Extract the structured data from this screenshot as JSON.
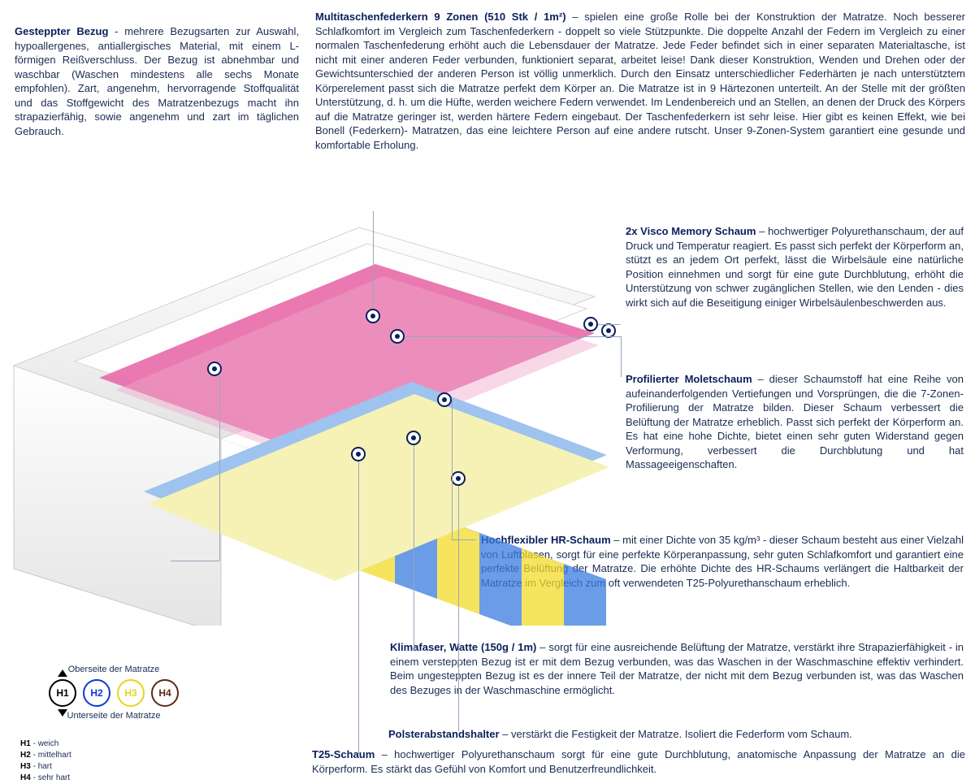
{
  "bezug": {
    "title": "Gesteppter Bezug",
    "sep": " - ",
    "body": "mehrere Bezugsarten zur Auswahl, hypoallergenes, antiallergisches Material, mit einem L-förmigen Reißverschluss. Der Bezug ist abnehmbar und waschbar (Waschen mindestens alle sechs Monate empfohlen). Zart, angenehm, hervorragende Stoffqualität und das Stoffgewicht des Matratzenbezugs macht ihn strapazierfähig, sowie angenehm und zart im täglichen Gebrauch."
  },
  "federkern": {
    "title": "Multitaschenfederkern 9 Zonen (510 Stk / 1m²)",
    "sep": " – ",
    "body": "spielen eine große Rolle bei der Konstruktion der Matratze. Noch besserer Schlafkomfort im Vergleich zum Taschenfederkern - doppelt so viele Stützpunkte. Die doppelte Anzahl der Federn im Vergleich zu einer normalen Taschenfederung erhöht auch die Lebensdauer der Matratze. Jede Feder befindet sich in einer separaten Materialtasche, ist nicht mit einer anderen Feder verbunden, funktioniert separat, arbeitet leise! Dank dieser Konstruktion, Wenden und Drehen oder der Gewichtsunterschied der anderen Person ist völlig unmerklich. Durch den Einsatz unterschiedlicher Federhärten je nach unterstütztem Körperelement passt sich die Matratze perfekt dem Körper an. Die Matratze ist in 9 Härtezonen unterteilt. An der Stelle mit der größten Unterstützung, d. h. um die Hüfte, werden weichere Federn verwendet. Im Lendenbereich und an Stellen, an denen der Druck des Körpers auf die Matratze geringer ist, werden härtere Federn eingebaut. Der Taschenfederkern ist sehr leise. Hier gibt es keinen Effekt, wie bei Bonell (Federkern)- Matratzen, das eine leichtere Person auf eine andere rutscht. Unser 9-Zonen-System garantiert eine gesunde und komfortable Erholung."
  },
  "visco": {
    "title": "2x Visco Memory Schaum",
    "sep": " – ",
    "body": "hochwertiger Polyurethanschaum, der auf Druck und Temperatur reagiert. Es passt sich perfekt der Körperform an, stützt es an jedem Ort perfekt, lässt die Wirbelsäule eine natürliche Position einnehmen und sorgt für eine gute Durchblutung, erhöht die Unterstützung von schwer zugänglichen Stellen, wie den Lenden - dies wirkt sich auf die Beseitigung einiger Wirbelsäulenbeschwerden aus."
  },
  "molet": {
    "title": "Profilierter Moletschaum",
    "sep": " – ",
    "body": "dieser Schaumstoff hat eine Reihe von aufeinanderfolgenden Vertiefungen und Vorsprüngen, die die 7-Zonen-Profilierung der Matratze bilden. Dieser Schaum verbessert die Belüftung der Matratze erheblich. Passt sich perfekt der Körperform an. Es hat eine hohe Dichte, bietet einen sehr guten Widerstand gegen Verformung, verbessert die Durchblutung und hat Massageeigenschaften."
  },
  "hr": {
    "title": "Hochflexibler HR-Schaum",
    "sep": " – ",
    "body": "mit einer Dichte von 35 kg/m³ - dieser Schaum besteht aus einer Vielzahl von Luftblasen, sorgt für eine perfekte Körperanpassung, sehr guten Schlafkomfort und garantiert eine perfekte Belüftung der Matratze. Die erhöhte Dichte des HR-Schaums verlängert die Haltbarkeit der Matratze im Vergleich zum oft verwendeten T25-Polyurethanschaum erheblich."
  },
  "klima": {
    "title": "Klimafaser, Watte (150g / 1m)",
    "sep": " – ",
    "body": "sorgt für eine ausreichende Belüftung der Matratze, verstärkt ihre Strapazierfähigkeit - in einem versteppten Bezug ist er mit dem Bezug verbunden, was das Waschen in der Waschmaschine effektiv verhindert. Beim ungesteppten Bezug ist es der innere Teil der Matratze, der nicht mit dem Bezug verbunden ist, was das Waschen des Bezuges in der Waschmaschine ermöglicht."
  },
  "polster": {
    "title": "Polsterabstandshalter",
    "sep": " – ",
    "body": "verstärkt die Festigkeit der Matratze. Isoliert die Federform vom Schaum."
  },
  "t25": {
    "title": "T25-Schaum",
    "sep": " – ",
    "body": "hochwertiger Polyurethanschaum sorgt für eine gute Durchblutung, anatomische Anpassung der Matratze an die Körperform. Es stärkt das Gefühl von Komfort und Benutzerfreundlichkeit."
  },
  "legend": {
    "top": "Oberseite der Matratze",
    "bottom": "Unterseite der Matratze",
    "items": [
      {
        "code": "H1",
        "label": "weich",
        "color": "#000000"
      },
      {
        "code": "H2",
        "label": "mittelhart",
        "color": "#1238d6"
      },
      {
        "code": "H3",
        "label": "hart",
        "color": "#e8d41a"
      },
      {
        "code": "H4",
        "label": "sehr hart",
        "color": "#5a2b14"
      }
    ]
  },
  "illustration": {
    "spring_zones": [
      "#3a7be0",
      "#f3db2a",
      "#3a7be0",
      "#f3db2a",
      "#3a7be0",
      "#f3db2a",
      "#3a7be0"
    ],
    "pink": "#e86aa8",
    "white": "#f4f4f4",
    "base_blue": "#9ec3ef",
    "base_yellow": "#f6f2b5"
  }
}
